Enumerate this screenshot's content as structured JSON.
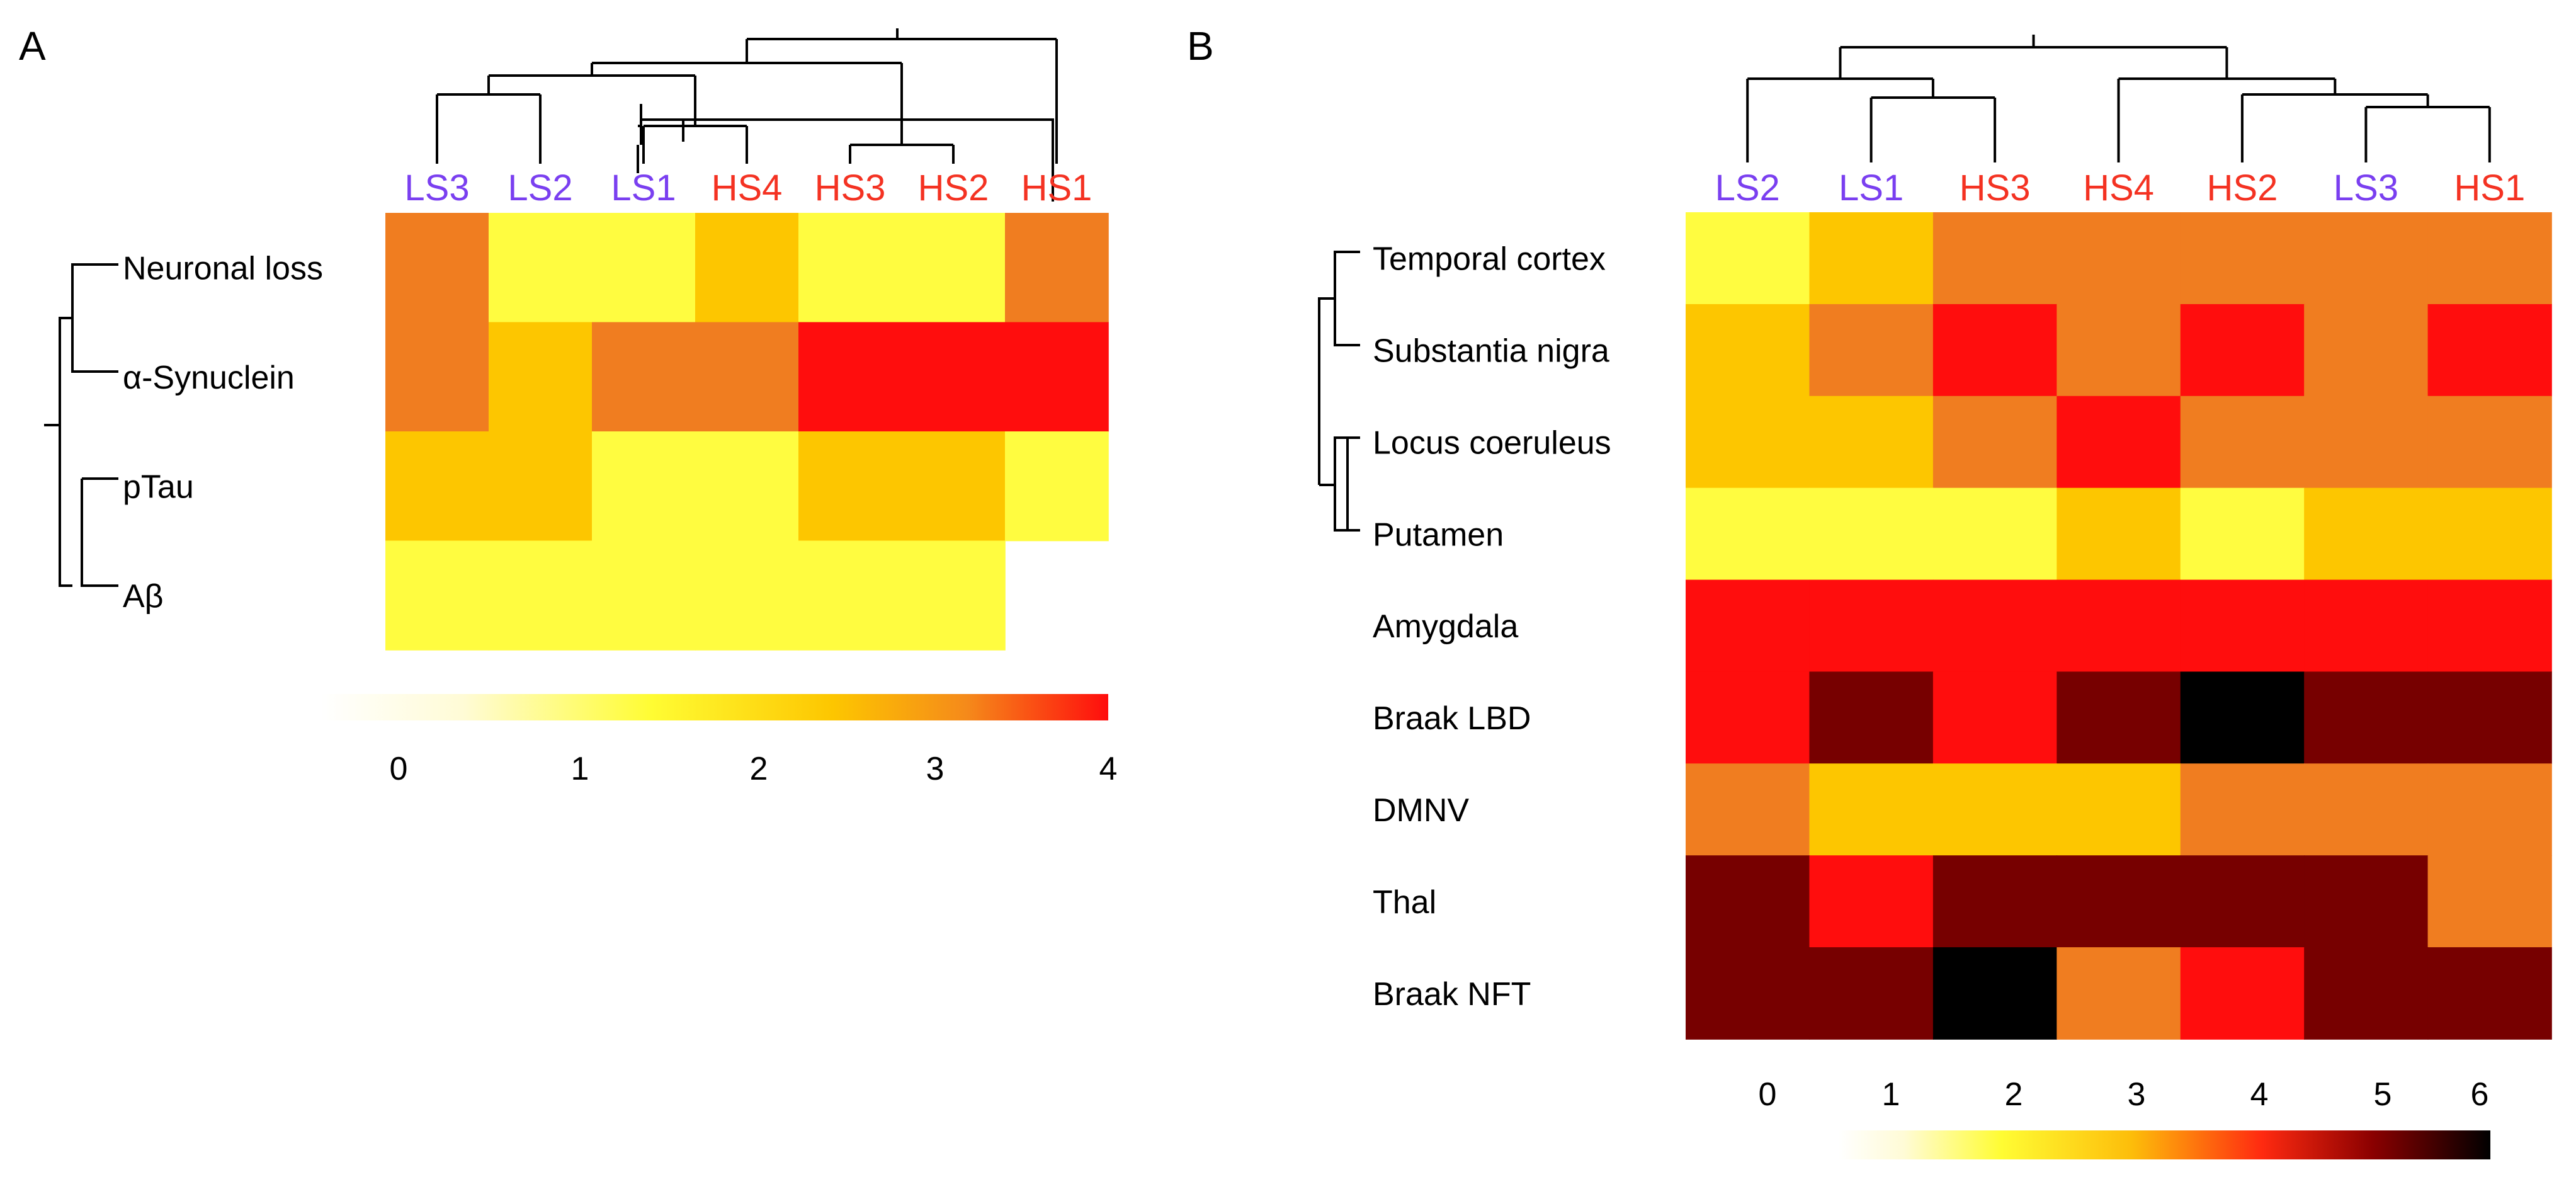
{
  "panels": [
    {
      "letter": "A"
    },
    {
      "letter": "B"
    }
  ],
  "colors": {
    "low_sample": "#7a3ff0",
    "high_sample": "#f43222",
    "scale": [
      "#fffff8",
      "#fffc40",
      "#fdc600",
      "#f07d20",
      "#ff0d0d",
      "#770000",
      "#000000"
    ]
  },
  "chart_data": [
    {
      "type": "heatmap",
      "panel": "A",
      "columns": [
        {
          "label": "LS3",
          "group": "low"
        },
        {
          "label": "LS2",
          "group": "low"
        },
        {
          "label": "LS1",
          "group": "low"
        },
        {
          "label": "HS4",
          "group": "high"
        },
        {
          "label": "HS3",
          "group": "high"
        },
        {
          "label": "HS2",
          "group": "high"
        },
        {
          "label": "HS1",
          "group": "high"
        }
      ],
      "rows": [
        "Neuronal loss",
        "α-Synuclein",
        "pTau",
        "Aβ"
      ],
      "values": [
        [
          3,
          1,
          1,
          2,
          1,
          1,
          3
        ],
        [
          3,
          2,
          3,
          3,
          4,
          4,
          4
        ],
        [
          2,
          2,
          1,
          1,
          2,
          2,
          1
        ],
        [
          1,
          1,
          1,
          1,
          1,
          1,
          null
        ]
      ],
      "color_range": [
        0,
        4
      ],
      "colorbar_ticks": [
        "0",
        "1",
        "2",
        "3",
        "4"
      ],
      "column_dendrogram_order": [
        "LS3",
        "LS2",
        "LS1",
        "HS4",
        "HS3",
        "HS2",
        "HS1"
      ]
    },
    {
      "type": "heatmap",
      "panel": "B",
      "columns": [
        {
          "label": "LS2",
          "group": "low"
        },
        {
          "label": "LS1",
          "group": "low"
        },
        {
          "label": "HS3",
          "group": "high"
        },
        {
          "label": "HS4",
          "group": "high"
        },
        {
          "label": "HS2",
          "group": "high"
        },
        {
          "label": "LS3",
          "group": "low"
        },
        {
          "label": "HS1",
          "group": "high"
        }
      ],
      "rows": [
        "Temporal cortex",
        "Substantia nigra",
        "Locus coeruleus",
        "Putamen",
        "Amygdala",
        "Braak LBD",
        "DMNV",
        "Thal",
        "Braak NFT"
      ],
      "values": [
        [
          1,
          2,
          3,
          3,
          3,
          3,
          3
        ],
        [
          2,
          3,
          4,
          3,
          4,
          3,
          4
        ],
        [
          2,
          2,
          3,
          4,
          3,
          3,
          3
        ],
        [
          1,
          1,
          1,
          2,
          1,
          2,
          2
        ],
        [
          4,
          4,
          4,
          4,
          4,
          4,
          4
        ],
        [
          4,
          5,
          4,
          5,
          6,
          5,
          5
        ],
        [
          3,
          2,
          2,
          2,
          3,
          3,
          3
        ],
        [
          5,
          4,
          5,
          5,
          5,
          5,
          3
        ],
        [
          5,
          5,
          6,
          3,
          4,
          5,
          5
        ]
      ],
      "color_range": [
        0,
        6
      ],
      "colorbar_ticks": [
        "0",
        "1",
        "2",
        "3",
        "4",
        "5",
        "6"
      ]
    }
  ]
}
